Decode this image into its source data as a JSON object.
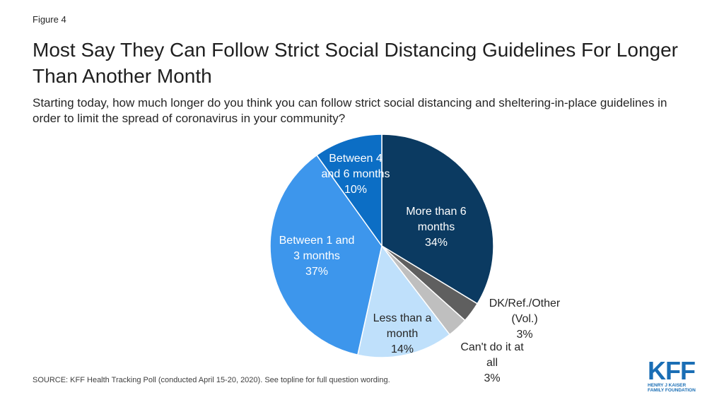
{
  "figure_label": "Figure 4",
  "source": "SOURCE: KFF Health Tracking Poll (conducted April 15-20, 2020). See topline for full question wording.",
  "logo": {
    "mark": "KFF",
    "line1": "HENRY J KAISER",
    "line2": "FAMILY FOUNDATION"
  },
  "chart_data": {
    "type": "pie",
    "title": "Most Say They Can Follow Strict Social Distancing Guidelines For Longer Than Another Month",
    "subtitle": "Starting today, how much longer do you think you can follow strict social distancing and sheltering-in-place guidelines in order to limit the spread of coronavirus in your community?",
    "slices": [
      {
        "label": [
          "More than 6",
          "months"
        ],
        "value": 34,
        "value_label": "34%",
        "color": "#0b3a61"
      },
      {
        "label": [
          "DK/Ref./Other",
          "(Vol.)"
        ],
        "value": 3,
        "value_label": "3%",
        "color": "#5f5f5f"
      },
      {
        "label": [
          "Can't do it at",
          "all"
        ],
        "value": 3,
        "value_label": "3%",
        "color": "#bfbfbf"
      },
      {
        "label": [
          "Less than a",
          "month"
        ],
        "value": 14,
        "value_label": "14%",
        "color": "#bfe0fb"
      },
      {
        "label": [
          "Between 1 and",
          "3 months"
        ],
        "value": 37,
        "value_label": "37%",
        "color": "#3d96ec"
      },
      {
        "label": [
          "Between 4",
          "and 6 months"
        ],
        "value": 10,
        "value_label": "10%",
        "color": "#0c6ec5"
      }
    ]
  }
}
